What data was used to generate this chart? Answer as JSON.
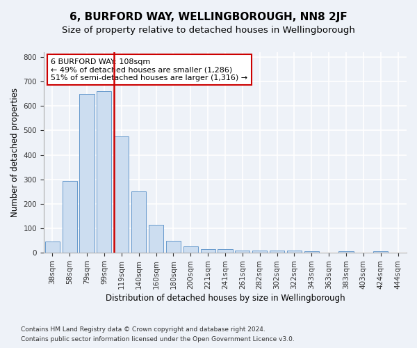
{
  "title": "6, BURFORD WAY, WELLINGBOROUGH, NN8 2JF",
  "subtitle": "Size of property relative to detached houses in Wellingborough",
  "xlabel": "Distribution of detached houses by size in Wellingborough",
  "ylabel": "Number of detached properties",
  "categories": [
    "38sqm",
    "58sqm",
    "79sqm",
    "99sqm",
    "119sqm",
    "140sqm",
    "160sqm",
    "180sqm",
    "200sqm",
    "221sqm",
    "241sqm",
    "261sqm",
    "282sqm",
    "302sqm",
    "322sqm",
    "343sqm",
    "363sqm",
    "383sqm",
    "403sqm",
    "424sqm",
    "444sqm"
  ],
  "values": [
    45,
    295,
    650,
    660,
    475,
    250,
    115,
    50,
    25,
    15,
    15,
    10,
    8,
    10,
    10,
    5,
    2,
    5,
    2,
    5,
    2
  ],
  "bar_color": "#ccddf0",
  "bar_edge_color": "#6699cc",
  "vline_x_index": 3.55,
  "vline_color": "#cc0000",
  "annotation_line1": "6 BURFORD WAY: 108sqm",
  "annotation_line2": "← 49% of detached houses are smaller (1,286)",
  "annotation_line3": "51% of semi-detached houses are larger (1,316) →",
  "annotation_box_color": "#ffffff",
  "annotation_box_edge": "#cc0000",
  "ylim": [
    0,
    820
  ],
  "yticks": [
    0,
    100,
    200,
    300,
    400,
    500,
    600,
    700,
    800
  ],
  "footnote1": "Contains HM Land Registry data © Crown copyright and database right 2024.",
  "footnote2": "Contains public sector information licensed under the Open Government Licence v3.0.",
  "background_color": "#eef2f8",
  "grid_color": "#ffffff",
  "title_fontsize": 11,
  "subtitle_fontsize": 9.5,
  "axis_label_fontsize": 8.5,
  "tick_fontsize": 7.5,
  "annotation_fontsize": 8,
  "ylabel_fontsize": 8.5
}
